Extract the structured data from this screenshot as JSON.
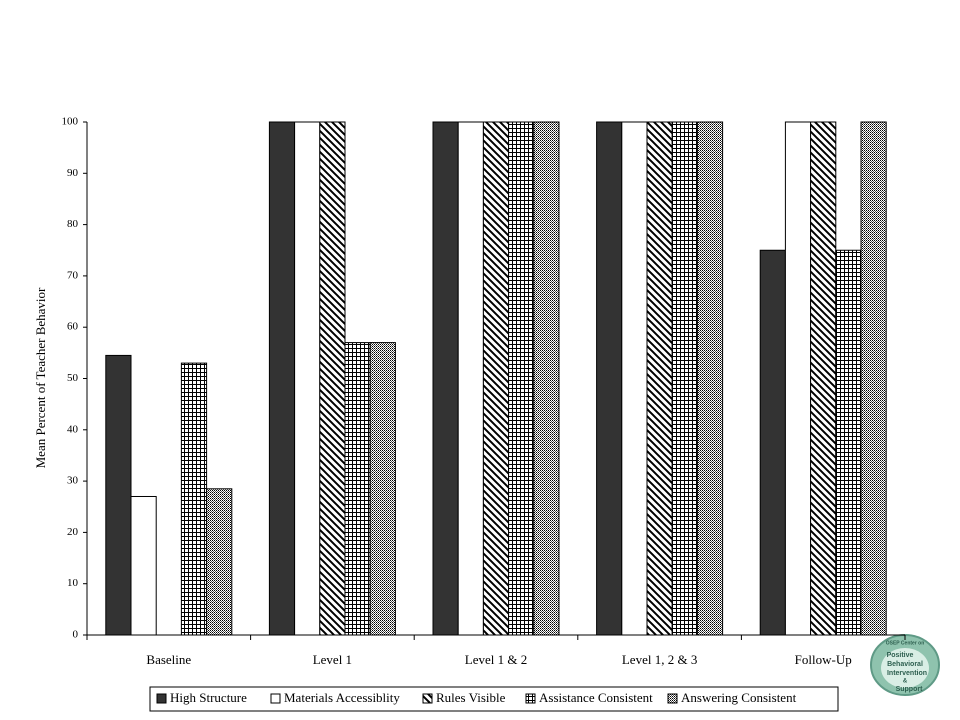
{
  "chart_data": {
    "type": "bar",
    "y_label": "Mean Percent of Teacher Behavior",
    "categories": [
      "Baseline",
      "Level 1",
      "Level 1 & 2",
      "Level 1, 2 & 3",
      "Follow-Up"
    ],
    "series": [
      {
        "name": "High Structure",
        "color": "#333333",
        "pattern": "solid",
        "values": [
          54.5,
          100,
          100,
          100,
          75
        ]
      },
      {
        "name": "Materials Accessiblity",
        "color": "#ffffff",
        "pattern": "solid",
        "values": [
          27,
          100,
          100,
          100,
          100
        ]
      },
      {
        "name": "Rules Visible",
        "color": "#000000",
        "pattern": "diagonal",
        "values": [
          0,
          100,
          100,
          100,
          100
        ]
      },
      {
        "name": "Assistance Consistent",
        "color": "#000000",
        "pattern": "grid",
        "values": [
          53,
          57,
          100,
          100,
          75
        ]
      },
      {
        "name": "Answering Consistent",
        "color": "#000000",
        "pattern": "dots",
        "values": [
          28.5,
          57,
          100,
          100,
          100
        ]
      }
    ],
    "ylim": [
      0,
      100
    ],
    "yticks": [
      0,
      10,
      20,
      30,
      40,
      50,
      60,
      70,
      80,
      90,
      100
    ],
    "grid": false,
    "legend": "bottom"
  },
  "logo": {
    "lines": [
      "OSEP Center on",
      "Positive",
      "Behavioral",
      "Intervention",
      "&",
      "Support"
    ]
  }
}
